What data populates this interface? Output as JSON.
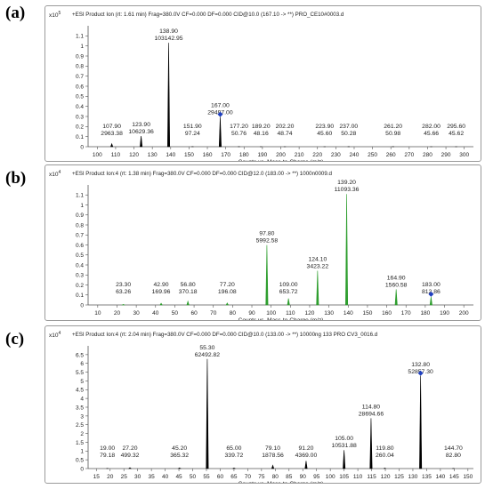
{
  "panels": [
    {
      "label": "(a)"
    },
    {
      "label": "(b)"
    },
    {
      "label": "(c)"
    }
  ],
  "chart_data": [
    {
      "type": "line",
      "header": "+ESI Product Ion (rt: 1.61 min) Frag=380.0V CF=0.000 DF=0.000 CID@10.0 (167.10 -> **) PRO_CE10#0003.d",
      "scale_label": "x10",
      "scale_exp": "5",
      "xlabel": "Counts vs. Mass-to-Charge (m/z)",
      "xlim": [
        95,
        305
      ],
      "ylim": [
        0,
        1.2
      ],
      "xticks": [
        100,
        110,
        120,
        130,
        140,
        150,
        160,
        170,
        180,
        190,
        200,
        210,
        220,
        230,
        240,
        250,
        260,
        270,
        280,
        290,
        300
      ],
      "yticks": [
        "0",
        "0.1",
        "0.2",
        "0.3",
        "0.4",
        "0.5",
        "0.6",
        "0.7",
        "0.8",
        "0.9",
        "1",
        "1.1"
      ],
      "color": "#000000",
      "precursor_marker": 167.0,
      "peaks": [
        {
          "mz": "107.90",
          "intensity": "2963.38",
          "y": 0.03
        },
        {
          "mz": "123.90",
          "intensity": "10629.36",
          "y": 0.106
        },
        {
          "mz": "138.90",
          "intensity": "103142.95",
          "y": 1.031
        },
        {
          "mz": "151.90",
          "intensity": "97.24",
          "y": 0.001
        },
        {
          "mz": "167.00",
          "intensity": "29497.00",
          "y": 0.295
        },
        {
          "mz": "177.20",
          "intensity": "50.76",
          "y": 0.001
        },
        {
          "mz": "189.20",
          "intensity": "48.16",
          "y": 0.0
        },
        {
          "mz": "202.20",
          "intensity": "48.74",
          "y": 0.0
        },
        {
          "mz": "223.90",
          "intensity": "45.60",
          "y": 0.0
        },
        {
          "mz": "237.00",
          "intensity": "50.28",
          "y": 0.001
        },
        {
          "mz": "261.20",
          "intensity": "50.98",
          "y": 0.001
        },
        {
          "mz": "282.00",
          "intensity": "45.66",
          "y": 0.0
        },
        {
          "mz": "295.60",
          "intensity": "45.62",
          "y": 0.0
        }
      ]
    },
    {
      "type": "line",
      "header": "+ESI Product Ion:4 (rt: 1.38 min) Frag=380.0V CF=0.000 DF=0.000 CID@12.0 (183.00 -> **) 1000n0009.d",
      "scale_label": "x10",
      "scale_exp": "4",
      "xlabel": "Counts vs. Mass-to-Charge (m/z)",
      "xlim": [
        5,
        205
      ],
      "ylim": [
        0,
        1.2
      ],
      "xticks": [
        10,
        20,
        30,
        40,
        50,
        60,
        70,
        80,
        90,
        100,
        110,
        120,
        130,
        140,
        150,
        160,
        170,
        180,
        190,
        200
      ],
      "yticks": [
        "0",
        "0.1",
        "0.2",
        "0.3",
        "0.4",
        "0.5",
        "0.6",
        "0.7",
        "0.8",
        "0.9",
        "1",
        "1.1"
      ],
      "color": "#2e9e2e",
      "precursor_marker": 183.0,
      "peaks": [
        {
          "mz": "23.30",
          "intensity": "63.26",
          "y": 0.006
        },
        {
          "mz": "42.90",
          "intensity": "169.96",
          "y": 0.017
        },
        {
          "mz": "56.80",
          "intensity": "370.18",
          "y": 0.037
        },
        {
          "mz": "77.20",
          "intensity": "196.08",
          "y": 0.02
        },
        {
          "mz": "97.80",
          "intensity": "5992.58",
          "y": 0.599
        },
        {
          "mz": "109.00",
          "intensity": "653.72",
          "y": 0.065
        },
        {
          "mz": "124.10",
          "intensity": "3423.22",
          "y": 0.342
        },
        {
          "mz": "139.20",
          "intensity": "11093.36",
          "y": 1.109
        },
        {
          "mz": "164.90",
          "intensity": "1560.58",
          "y": 0.156
        },
        {
          "mz": "183.00",
          "intensity": "812.86",
          "y": 0.081
        }
      ]
    },
    {
      "type": "line",
      "header": "+ESI Product Ion:4 (rt: 2.04 min) Frag=380.0V CF=0.000 DF=0.000 CID@10.0 (133.00 -> **) 10000ng 133 PRO CV3_0016.d",
      "scale_label": "x10",
      "scale_exp": "4",
      "xlabel": "Counts vs. Mass-to-Charge (m/z)",
      "xlim": [
        12,
        152
      ],
      "ylim": [
        0,
        7
      ],
      "xticks": [
        15,
        20,
        25,
        30,
        35,
        40,
        45,
        50,
        55,
        60,
        65,
        70,
        75,
        80,
        85,
        90,
        95,
        100,
        105,
        110,
        115,
        120,
        125,
        130,
        135,
        140,
        145,
        150
      ],
      "yticks": [
        "0",
        "0.5",
        "1",
        "1.5",
        "2",
        "2.5",
        "3",
        "3.5",
        "4",
        "4.5",
        "5",
        "5.5",
        "6",
        "6.5"
      ],
      "color": "#000000",
      "precursor_marker": 132.8,
      "peaks": [
        {
          "mz": "19.00",
          "intensity": "79.18",
          "y": 0.008
        },
        {
          "mz": "27.20",
          "intensity": "499.32",
          "y": 0.05
        },
        {
          "mz": "45.20",
          "intensity": "365.32",
          "y": 0.037
        },
        {
          "mz": "55.30",
          "intensity": "62492.82",
          "y": 6.249
        },
        {
          "mz": "65.00",
          "intensity": "339.72",
          "y": 0.034
        },
        {
          "mz": "79.10",
          "intensity": "1878.56",
          "y": 0.188
        },
        {
          "mz": "91.20",
          "intensity": "4369.00",
          "y": 0.437
        },
        {
          "mz": "105.00",
          "intensity": "10531.88",
          "y": 1.053
        },
        {
          "mz": "114.80",
          "intensity": "28694.66",
          "y": 2.869
        },
        {
          "mz": "119.80",
          "intensity": "260.04",
          "y": 0.026
        },
        {
          "mz": "132.80",
          "intensity": "52857.30",
          "y": 5.286
        },
        {
          "mz": "144.70",
          "intensity": "82.80",
          "y": 0.008
        }
      ]
    }
  ]
}
